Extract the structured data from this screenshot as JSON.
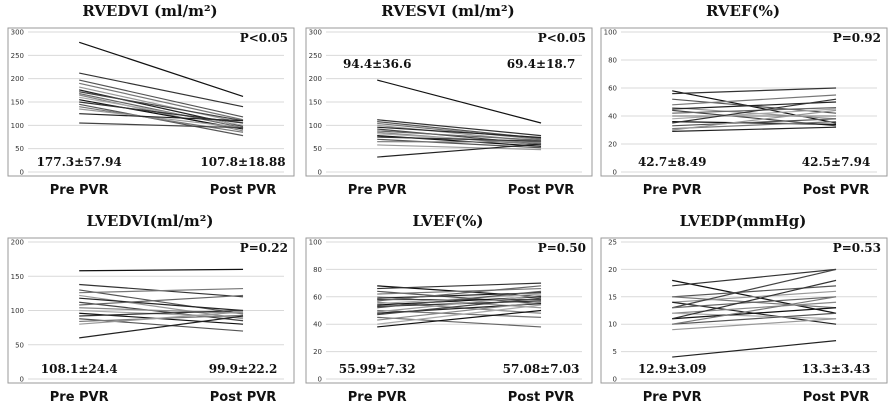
{
  "chart_data": [
    {
      "type": "line",
      "title": "RVEDVI (ml/m²)",
      "ylim": [
        0,
        300
      ],
      "yticks": [
        0,
        50,
        100,
        150,
        200,
        250,
        300
      ],
      "categories": [
        "Pre PVR",
        "Post PVR"
      ],
      "p_value": "P<0.05",
      "pre_stat": "177.3±57.94",
      "post_stat": "107.8±18.88",
      "stat_position": "bottom",
      "series": [
        {
          "values": [
            278,
            162
          ]
        },
        {
          "values": [
            212,
            140
          ]
        },
        {
          "values": [
            197,
            118
          ]
        },
        {
          "values": [
            190,
            112
          ]
        },
        {
          "values": [
            182,
            105
          ]
        },
        {
          "values": [
            176,
            98
          ]
        },
        {
          "values": [
            172,
            110
          ]
        },
        {
          "values": [
            168,
            95
          ]
        },
        {
          "values": [
            165,
            88
          ]
        },
        {
          "values": [
            160,
            100
          ]
        },
        {
          "values": [
            155,
            92
          ]
        },
        {
          "values": [
            150,
            105
          ]
        },
        {
          "values": [
            145,
            78
          ]
        },
        {
          "values": [
            140,
            85
          ]
        },
        {
          "values": [
            135,
            95
          ]
        },
        {
          "values": [
            125,
            110
          ]
        },
        {
          "values": [
            105,
            95
          ]
        }
      ]
    },
    {
      "type": "line",
      "title": "RVESVI (ml/m²)",
      "ylim": [
        0,
        300
      ],
      "yticks": [
        0,
        50,
        100,
        150,
        200,
        250,
        300
      ],
      "categories": [
        "Pre PVR",
        "Post PVR"
      ],
      "p_value": "P<0.05",
      "pre_stat": "94.4±36.6",
      "post_stat": "69.4±18.7",
      "stat_position": "top",
      "series": [
        {
          "values": [
            197,
            105
          ]
        },
        {
          "values": [
            112,
            78
          ]
        },
        {
          "values": [
            108,
            72
          ]
        },
        {
          "values": [
            104,
            70
          ]
        },
        {
          "values": [
            100,
            65
          ]
        },
        {
          "values": [
            96,
            74
          ]
        },
        {
          "values": [
            92,
            60
          ]
        },
        {
          "values": [
            88,
            68
          ]
        },
        {
          "values": [
            85,
            58
          ]
        },
        {
          "values": [
            82,
            62
          ]
        },
        {
          "values": [
            78,
            55
          ]
        },
        {
          "values": [
            75,
            66
          ]
        },
        {
          "values": [
            70,
            52
          ]
        },
        {
          "values": [
            65,
            64
          ]
        },
        {
          "values": [
            58,
            48
          ]
        },
        {
          "values": [
            32,
            60
          ]
        }
      ]
    },
    {
      "type": "line",
      "title": "RVEF(%)",
      "ylim": [
        0,
        100
      ],
      "yticks": [
        0,
        20,
        40,
        60,
        80,
        100
      ],
      "categories": [
        "Pre PVR",
        "Post PVR"
      ],
      "p_value": "P=0.92",
      "pre_stat": "42.7±8.49",
      "post_stat": "42.5±7.94",
      "stat_position": "bottom",
      "series": [
        {
          "values": [
            58,
            35
          ]
        },
        {
          "values": [
            56,
            60
          ]
        },
        {
          "values": [
            52,
            42
          ]
        },
        {
          "values": [
            48,
            55
          ]
        },
        {
          "values": [
            46,
            38
          ]
        },
        {
          "values": [
            45,
            50
          ]
        },
        {
          "values": [
            44,
            33
          ]
        },
        {
          "values": [
            42,
            46
          ]
        },
        {
          "values": [
            40,
            40
          ]
        },
        {
          "values": [
            38,
            45
          ]
        },
        {
          "values": [
            36,
            34
          ]
        },
        {
          "values": [
            35,
            52
          ]
        },
        {
          "values": [
            33,
            38
          ]
        },
        {
          "values": [
            31,
            36
          ]
        },
        {
          "values": [
            30,
            44
          ]
        },
        {
          "values": [
            29,
            32
          ]
        }
      ]
    },
    {
      "type": "line",
      "title": "LVEDVI(ml/m²)",
      "ylim": [
        0,
        200
      ],
      "yticks": [
        0,
        50,
        100,
        150,
        200
      ],
      "categories": [
        "Pre PVR",
        "Post PVR"
      ],
      "p_value": "P=0.22",
      "pre_stat": "108.1±24.4",
      "post_stat": "99.9±22.2",
      "stat_position": "bottom",
      "series": [
        {
          "values": [
            158,
            160
          ]
        },
        {
          "values": [
            138,
            120
          ]
        },
        {
          "values": [
            130,
            95
          ]
        },
        {
          "values": [
            126,
            132
          ]
        },
        {
          "values": [
            122,
            88
          ]
        },
        {
          "values": [
            118,
            100
          ]
        },
        {
          "values": [
            112,
            85
          ]
        },
        {
          "values": [
            108,
            122
          ]
        },
        {
          "values": [
            104,
            96
          ]
        },
        {
          "values": [
            100,
            90
          ]
        },
        {
          "values": [
            96,
            80
          ]
        },
        {
          "values": [
            92,
            100
          ]
        },
        {
          "values": [
            88,
            70
          ]
        },
        {
          "values": [
            84,
            93
          ]
        },
        {
          "values": [
            80,
            98
          ]
        },
        {
          "values": [
            60,
            92
          ]
        }
      ]
    },
    {
      "type": "line",
      "title": "LVEF(%)",
      "ylim": [
        0,
        100
      ],
      "yticks": [
        0,
        20,
        40,
        60,
        80,
        100
      ],
      "categories": [
        "Pre PVR",
        "Post PVR"
      ],
      "p_value": "P=0.50",
      "pre_stat": "55.99±7.32",
      "post_stat": "57.08±7.03",
      "stat_position": "bottom",
      "series": [
        {
          "values": [
            68,
            60
          ]
        },
        {
          "values": [
            66,
            70
          ]
        },
        {
          "values": [
            64,
            55
          ]
        },
        {
          "values": [
            62,
            66
          ]
        },
        {
          "values": [
            60,
            52
          ]
        },
        {
          "values": [
            59,
            63
          ]
        },
        {
          "values": [
            58,
            58
          ]
        },
        {
          "values": [
            57,
            68
          ]
        },
        {
          "values": [
            56,
            48
          ]
        },
        {
          "values": [
            55,
            62
          ]
        },
        {
          "values": [
            54,
            60
          ]
        },
        {
          "values": [
            53,
            57
          ]
        },
        {
          "values": [
            52,
            64
          ]
        },
        {
          "values": [
            50,
            45
          ]
        },
        {
          "values": [
            49,
            61
          ]
        },
        {
          "values": [
            48,
            55
          ]
        },
        {
          "values": [
            47,
            59
          ]
        },
        {
          "values": [
            45,
            38
          ]
        },
        {
          "values": [
            43,
            56
          ]
        },
        {
          "values": [
            40,
            54
          ]
        },
        {
          "values": [
            38,
            50
          ]
        }
      ]
    },
    {
      "type": "line",
      "title": "LVEDP(mmHg)",
      "ylim": [
        0,
        25
      ],
      "yticks": [
        0,
        5,
        10,
        15,
        20,
        25
      ],
      "categories": [
        "Pre PVR",
        "Post PVR"
      ],
      "p_value": "P=0.53",
      "pre_stat": "12.9±3.09",
      "post_stat": "13.3±3.43",
      "stat_position": "bottom",
      "series": [
        {
          "values": [
            18,
            12
          ]
        },
        {
          "values": [
            17,
            20
          ]
        },
        {
          "values": [
            15,
            17
          ]
        },
        {
          "values": [
            15,
            13
          ]
        },
        {
          "values": [
            14,
            16
          ]
        },
        {
          "values": [
            14,
            10
          ]
        },
        {
          "values": [
            13,
            20
          ]
        },
        {
          "values": [
            13,
            15
          ]
        },
        {
          "values": [
            12,
            14
          ]
        },
        {
          "values": [
            12,
            11
          ]
        },
        {
          "values": [
            11,
            13
          ]
        },
        {
          "values": [
            11,
            18
          ]
        },
        {
          "values": [
            10,
            12
          ]
        },
        {
          "values": [
            10,
            15
          ]
        },
        {
          "values": [
            9,
            11
          ]
        },
        {
          "values": [
            4,
            7
          ]
        }
      ]
    }
  ]
}
